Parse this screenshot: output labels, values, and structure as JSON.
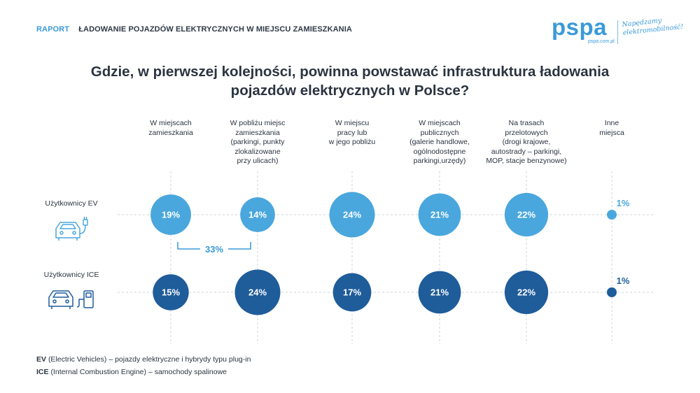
{
  "header": {
    "report_label": "RAPORT",
    "report_subtitle": "ŁADOWANIE POJAZDÓW ELEKTRYCZNYCH W MIEJSCU ZAMIESZKANIA"
  },
  "logo": {
    "wordmark": "pspa",
    "url": "pspa.com.pl",
    "tagline_line1": "Napędzamy",
    "tagline_line2": "elektromobilność!"
  },
  "colors": {
    "ev": "#4aa7dd",
    "ice": "#1f5c9a",
    "accent": "#3a9ad9",
    "text": "#2b3440",
    "grid": "#cdd3d9"
  },
  "chart_data": {
    "type": "bubble",
    "title_line1": "Gdzie, w pierwszej kolejności, powinna powstawać infrastruktura ładowania",
    "title_line2": "pojazdów elektrycznych w Polsce?",
    "categories": [
      [
        "W miejscach",
        "zamieszkania"
      ],
      [
        "W pobliżu miejsc",
        "zamieszkania",
        "(parkingi, punkty",
        "zlokalizowane",
        "przy ulicach)"
      ],
      [
        "W miejscu",
        "pracy lub",
        "w jego pobliżu"
      ],
      [
        "W miejscach",
        "publicznych",
        "(galerie handlowe,",
        "ogólnodostępne",
        "parkingi,urzędy)"
      ],
      [
        "Na trasach",
        "przelotowych",
        "(drogi krajowe,",
        "autostrady – parkingi,",
        "MOP, stacje benzynowe)"
      ],
      [
        "Inne",
        "miejsca"
      ]
    ],
    "series": [
      {
        "name": "Użytkownicy EV",
        "values": [
          19,
          14,
          24,
          21,
          22,
          1
        ]
      },
      {
        "name": "Użytkownicy ICE",
        "values": [
          15,
          24,
          17,
          21,
          22,
          1
        ]
      }
    ],
    "unit": "%",
    "bracket": {
      "series": "Użytkownicy EV",
      "from": 0,
      "to": 1,
      "label": "33%"
    }
  },
  "footnotes": [
    {
      "abbr": "EV",
      "expansion": "(Electric Vehicles)",
      "description": "– pojazdy elektryczne i hybrydy typu plug-in"
    },
    {
      "abbr": "ICE",
      "expansion": "(Internal Combustion Engine)",
      "description": "– samochody spalinowe"
    }
  ]
}
